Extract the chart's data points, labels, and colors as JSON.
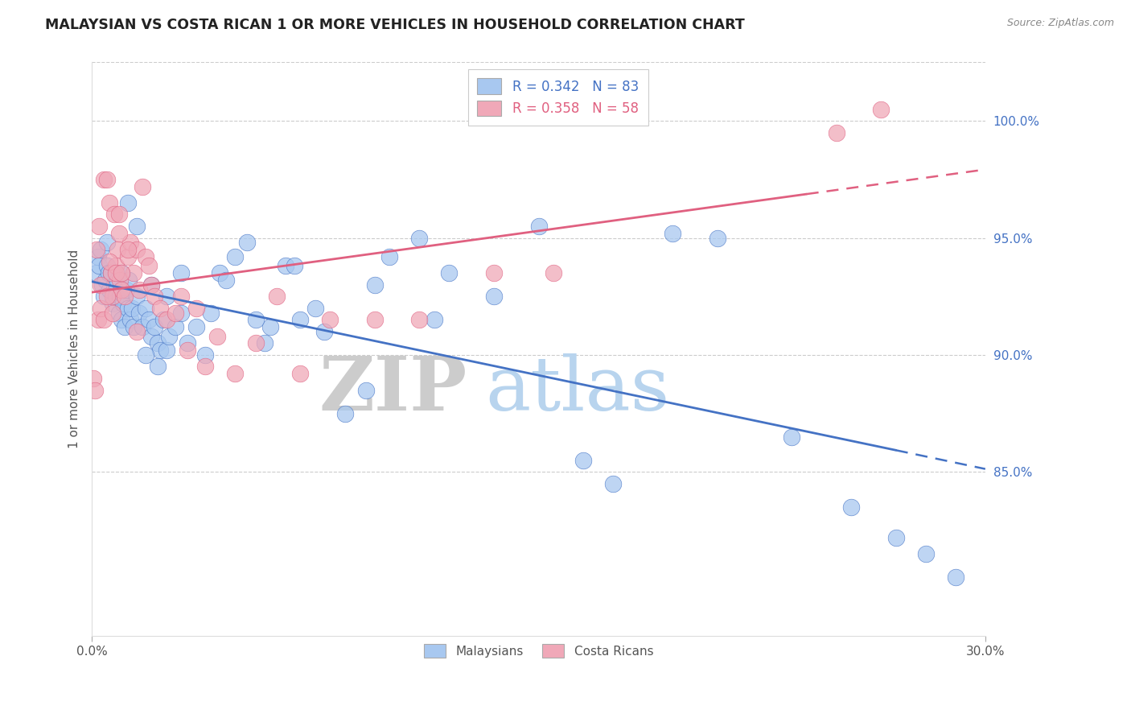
{
  "title": "MALAYSIAN VS COSTA RICAN 1 OR MORE VEHICLES IN HOUSEHOLD CORRELATION CHART",
  "source": "Source: ZipAtlas.com",
  "ylabel": "1 or more Vehicles in Household",
  "legend_blue_r": "R = 0.342",
  "legend_blue_n": "N = 83",
  "legend_pink_r": "R = 0.358",
  "legend_pink_n": "N = 58",
  "watermark_zip": "ZIP",
  "watermark_atlas": "atlas",
  "blue_color": "#A8C8F0",
  "pink_color": "#F0A8B8",
  "trend_blue": "#4472C4",
  "trend_pink": "#E06080",
  "legend_text_blue": "#4472C4",
  "legend_text_pink": "#E06080",
  "right_tick_color": "#4472C4",
  "x_min": 0.0,
  "x_max": 30.0,
  "y_min": 78.0,
  "y_max": 102.5,
  "y_ticks": [
    85.0,
    90.0,
    95.0,
    100.0
  ],
  "blue_x": [
    0.15,
    0.2,
    0.25,
    0.3,
    0.35,
    0.4,
    0.45,
    0.5,
    0.5,
    0.55,
    0.6,
    0.65,
    0.7,
    0.75,
    0.8,
    0.85,
    0.9,
    0.95,
    1.0,
    1.05,
    1.1,
    1.15,
    1.2,
    1.25,
    1.3,
    1.35,
    1.4,
    1.5,
    1.6,
    1.7,
    1.8,
    1.9,
    2.0,
    2.1,
    2.2,
    2.3,
    2.4,
    2.5,
    2.6,
    2.8,
    3.0,
    3.2,
    3.5,
    3.8,
    4.0,
    4.3,
    4.8,
    5.2,
    5.8,
    6.0,
    6.5,
    7.0,
    7.8,
    8.5,
    9.2,
    10.0,
    11.0,
    12.0,
    13.5,
    15.0,
    16.5,
    17.5,
    19.5,
    21.0,
    23.5,
    25.5,
    27.0,
    28.0,
    29.0,
    1.0,
    1.2,
    1.5,
    2.0,
    2.5,
    3.0,
    1.8,
    2.2,
    4.5,
    5.5,
    6.8,
    7.5,
    9.5,
    11.5
  ],
  "blue_y": [
    93.5,
    94.2,
    93.8,
    94.5,
    93.0,
    92.5,
    93.2,
    93.8,
    94.8,
    93.5,
    92.8,
    93.5,
    92.2,
    93.0,
    92.5,
    93.2,
    91.8,
    92.5,
    91.5,
    92.2,
    91.2,
    92.8,
    92.0,
    93.2,
    91.5,
    92.0,
    91.2,
    92.5,
    91.8,
    91.2,
    92.0,
    91.5,
    90.8,
    91.2,
    90.5,
    90.2,
    91.5,
    90.2,
    90.8,
    91.2,
    91.8,
    90.5,
    91.2,
    90.0,
    91.8,
    93.5,
    94.2,
    94.8,
    90.5,
    91.2,
    93.8,
    91.5,
    91.0,
    87.5,
    88.5,
    94.2,
    95.0,
    93.5,
    92.5,
    95.5,
    85.5,
    84.5,
    95.2,
    95.0,
    86.5,
    83.5,
    82.2,
    81.5,
    80.5,
    93.5,
    96.5,
    95.5,
    93.0,
    92.5,
    93.5,
    90.0,
    89.5,
    93.2,
    91.5,
    93.8,
    92.0,
    93.0,
    91.5
  ],
  "pink_x": [
    0.05,
    0.1,
    0.15,
    0.2,
    0.25,
    0.3,
    0.4,
    0.5,
    0.6,
    0.65,
    0.7,
    0.75,
    0.8,
    0.85,
    0.9,
    0.95,
    1.0,
    1.1,
    1.2,
    1.3,
    1.4,
    1.5,
    1.6,
    1.7,
    1.8,
    1.9,
    2.0,
    2.1,
    2.3,
    2.5,
    2.8,
    3.0,
    3.2,
    3.5,
    3.8,
    4.2,
    4.8,
    5.5,
    6.2,
    7.0,
    8.0,
    9.5,
    11.0,
    13.5,
    15.5,
    18.0,
    25.0,
    26.5,
    0.3,
    0.4,
    0.5,
    0.6,
    0.7,
    0.8,
    0.9,
    1.0,
    1.2,
    1.5
  ],
  "pink_y": [
    89.0,
    88.5,
    94.5,
    91.5,
    95.5,
    92.0,
    97.5,
    97.5,
    96.5,
    93.5,
    92.5,
    96.0,
    93.8,
    94.5,
    96.0,
    93.2,
    92.8,
    92.5,
    94.2,
    94.8,
    93.5,
    94.5,
    92.8,
    97.2,
    94.2,
    93.8,
    93.0,
    92.5,
    92.0,
    91.5,
    91.8,
    92.5,
    90.2,
    92.0,
    89.5,
    90.8,
    89.2,
    90.5,
    92.5,
    89.2,
    91.5,
    91.5,
    91.5,
    93.5,
    93.5,
    100.5,
    99.5,
    100.5,
    93.0,
    91.5,
    92.5,
    94.0,
    91.8,
    93.5,
    95.2,
    93.5,
    94.5,
    91.0
  ]
}
